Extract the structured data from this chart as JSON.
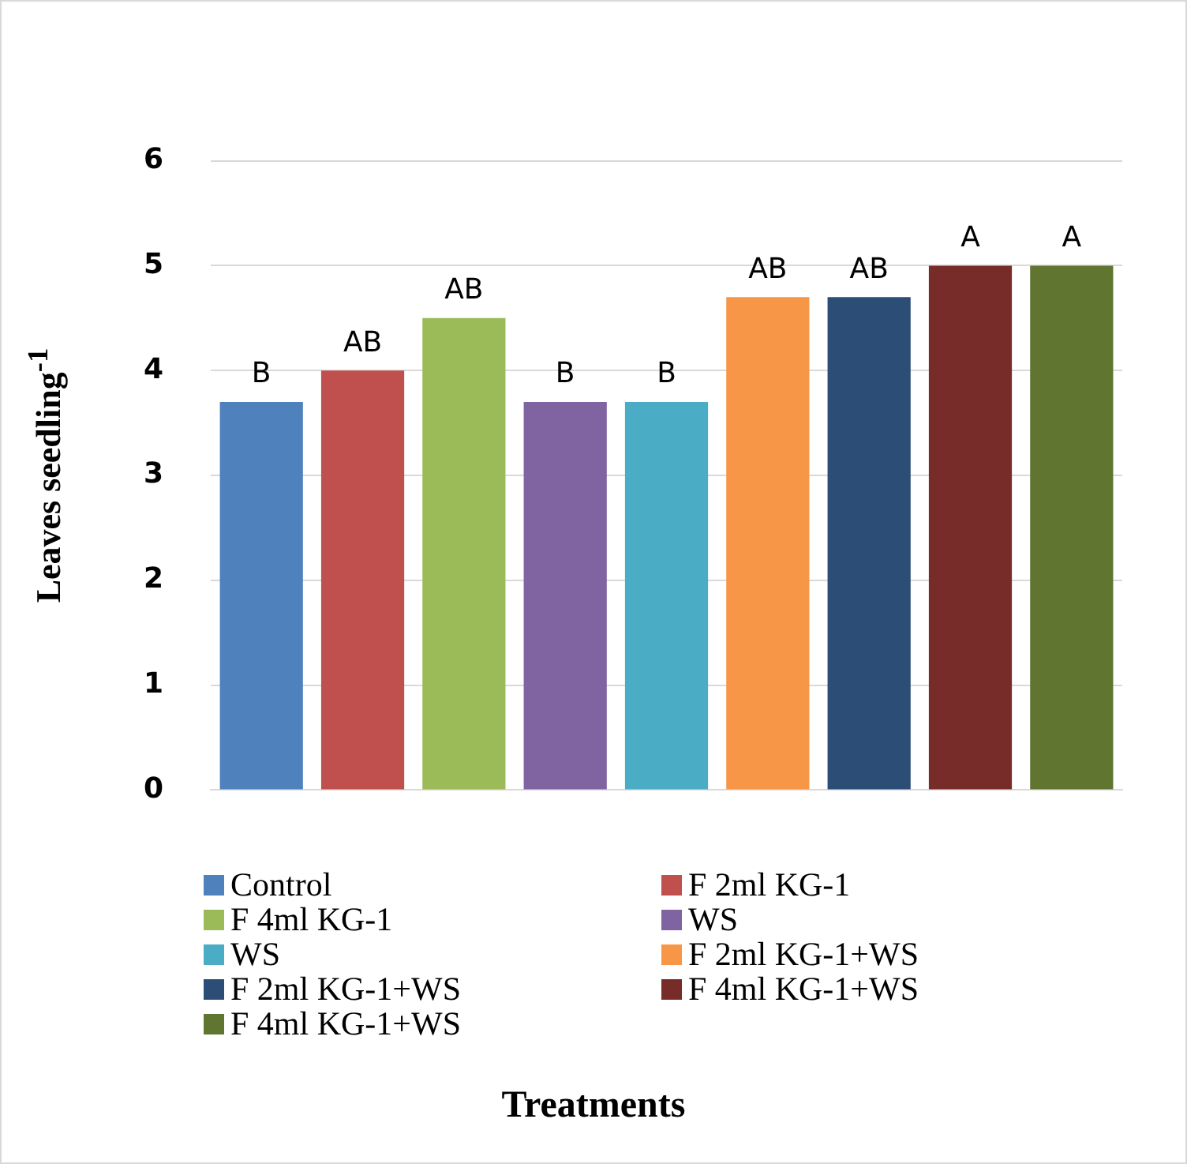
{
  "chart_data": {
    "type": "bar",
    "annotations": [
      "Treatments"
    ],
    "ylabel": "Leaves seedling$^{-1}$",
    "categories": [
      null,
      null,
      null,
      null,
      null,
      null,
      null,
      null,
      null
    ],
    "series": [
      {
        "name": "Control",
        "color": "#4f81bd",
        "values": [
          3.7,
          null,
          null,
          null,
          null,
          null,
          null,
          null,
          null
        ],
        "value_labels": [
          "B",
          null,
          null,
          null,
          null,
          null,
          null,
          null,
          null
        ]
      },
      {
        "name": "F 2ml KG-1",
        "color": "#c0504d",
        "values": [
          null,
          4.0,
          null,
          null,
          null,
          null,
          null,
          null,
          null
        ],
        "value_labels": [
          null,
          "AB",
          null,
          null,
          null,
          null,
          null,
          null,
          null
        ]
      },
      {
        "name": "F 4ml KG-1",
        "color": "#9bbb59",
        "values": [
          null,
          null,
          4.5,
          null,
          null,
          null,
          null,
          null,
          null
        ],
        "value_labels": [
          null,
          null,
          "AB",
          null,
          null,
          null,
          null,
          null,
          null
        ]
      },
      {
        "name": "WS",
        "color": "#8064a2",
        "values": [
          null,
          null,
          null,
          3.7,
          null,
          null,
          null,
          null,
          null
        ],
        "value_labels": [
          null,
          null,
          null,
          "B",
          null,
          null,
          null,
          null,
          null
        ]
      },
      {
        "name": "WS",
        "color": "#4bacc6",
        "values": [
          null,
          null,
          null,
          null,
          3.7,
          null,
          null,
          null,
          null
        ],
        "value_labels": [
          null,
          null,
          null,
          null,
          "B",
          null,
          null,
          null,
          null
        ]
      },
      {
        "name": "F 2ml KG-1+WS",
        "color": "#f79646",
        "values": [
          null,
          null,
          null,
          null,
          null,
          4.7,
          null,
          null,
          null
        ],
        "value_labels": [
          null,
          null,
          null,
          null,
          null,
          "AB",
          null,
          null,
          null
        ]
      },
      {
        "name": "F 2ml KG-1+WS",
        "color": "#2c4d75",
        "values": [
          null,
          null,
          null,
          null,
          null,
          null,
          4.7,
          null,
          null
        ],
        "value_labels": [
          null,
          null,
          null,
          null,
          null,
          null,
          "AB",
          null,
          null
        ]
      },
      {
        "name": "F 4ml KG-1+WS",
        "color": "#772c2a",
        "values": [
          null,
          null,
          null,
          null,
          null,
          null,
          null,
          5.0,
          null
        ],
        "value_labels": [
          null,
          null,
          null,
          null,
          null,
          null,
          null,
          "A",
          null
        ]
      },
      {
        "name": "F 4ml KG-1+WS",
        "color": "#5f7530",
        "values": [
          null,
          null,
          null,
          null,
          null,
          null,
          null,
          null,
          5.0
        ],
        "value_labels": [
          null,
          null,
          null,
          null,
          null,
          null,
          null,
          null,
          "A"
        ]
      }
    ],
    "ylim": [
      0,
      6
    ],
    "yticks": [
      0,
      1,
      2,
      3,
      4,
      5,
      6
    ],
    "grid": "y",
    "legend": "bottom"
  }
}
